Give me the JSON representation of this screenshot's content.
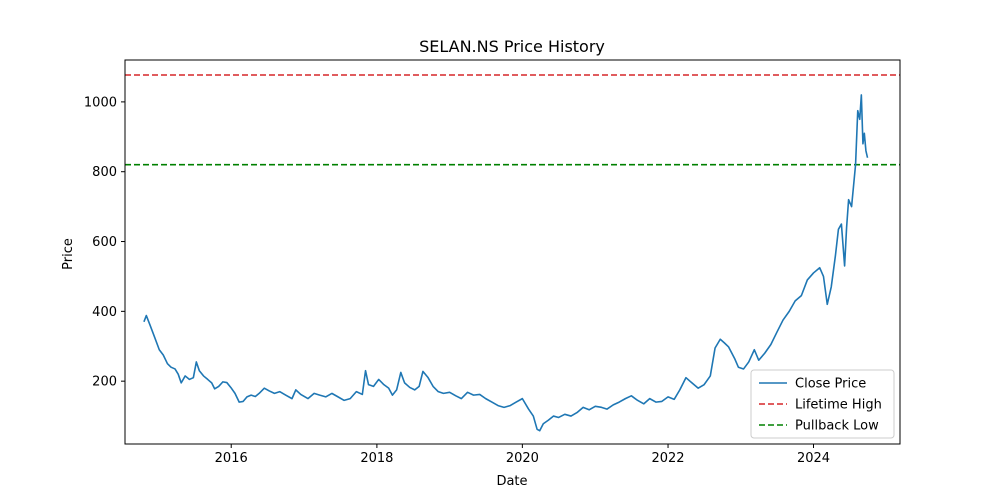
{
  "chart_data": {
    "type": "line",
    "title": "SELAN.NS Price History",
    "xlabel": "Date",
    "ylabel": "Price",
    "xlim": [
      "2014-07-17",
      "2025-03-10"
    ],
    "ylim": [
      20,
      1120
    ],
    "x_ticks": [
      {
        "date": "2016-01-01",
        "label": "2016"
      },
      {
        "date": "2018-01-01",
        "label": "2018"
      },
      {
        "date": "2020-01-01",
        "label": "2020"
      },
      {
        "date": "2022-01-01",
        "label": "2022"
      },
      {
        "date": "2024-01-01",
        "label": "2024"
      }
    ],
    "y_ticks": [
      200,
      400,
      600,
      800,
      1000
    ],
    "grid": false,
    "legend_position": "lower-right",
    "series": [
      {
        "name": "Close Price",
        "color": "#1f77b4",
        "style": "solid",
        "points": [
          [
            "2014-10-20",
            370
          ],
          [
            "2014-11-01",
            388
          ],
          [
            "2014-11-20",
            360
          ],
          [
            "2014-12-10",
            330
          ],
          [
            "2015-01-05",
            290
          ],
          [
            "2015-01-25",
            275
          ],
          [
            "2015-02-15",
            250
          ],
          [
            "2015-03-05",
            240
          ],
          [
            "2015-03-25",
            235
          ],
          [
            "2015-04-10",
            220
          ],
          [
            "2015-04-25",
            195
          ],
          [
            "2015-05-15",
            215
          ],
          [
            "2015-06-05",
            205
          ],
          [
            "2015-06-25",
            210
          ],
          [
            "2015-07-10",
            255
          ],
          [
            "2015-07-25",
            230
          ],
          [
            "2015-08-15",
            215
          ],
          [
            "2015-09-05",
            205
          ],
          [
            "2015-09-25",
            195
          ],
          [
            "2015-10-10",
            178
          ],
          [
            "2015-10-30",
            185
          ],
          [
            "2015-11-20",
            198
          ],
          [
            "2015-12-10",
            196
          ],
          [
            "2015-12-30",
            182
          ],
          [
            "2016-01-20",
            165
          ],
          [
            "2016-02-10",
            140
          ],
          [
            "2016-03-01",
            142
          ],
          [
            "2016-03-20",
            155
          ],
          [
            "2016-04-10",
            160
          ],
          [
            "2016-05-01",
            156
          ],
          [
            "2016-05-20",
            165
          ],
          [
            "2016-06-15",
            180
          ],
          [
            "2016-07-10",
            172
          ],
          [
            "2016-08-05",
            165
          ],
          [
            "2016-09-01",
            170
          ],
          [
            "2016-10-01",
            160
          ],
          [
            "2016-11-01",
            150
          ],
          [
            "2016-11-20",
            175
          ],
          [
            "2016-12-15",
            162
          ],
          [
            "2017-01-20",
            150
          ],
          [
            "2017-02-20",
            165
          ],
          [
            "2017-03-20",
            160
          ],
          [
            "2017-04-20",
            155
          ],
          [
            "2017-05-20",
            165
          ],
          [
            "2017-06-20",
            155
          ],
          [
            "2017-07-20",
            145
          ],
          [
            "2017-08-20",
            150
          ],
          [
            "2017-09-20",
            170
          ],
          [
            "2017-10-20",
            162
          ],
          [
            "2017-11-05",
            230
          ],
          [
            "2017-11-20",
            190
          ],
          [
            "2017-12-15",
            185
          ],
          [
            "2018-01-10",
            205
          ],
          [
            "2018-02-05",
            190
          ],
          [
            "2018-03-01",
            180
          ],
          [
            "2018-03-20",
            160
          ],
          [
            "2018-04-10",
            175
          ],
          [
            "2018-05-01",
            225
          ],
          [
            "2018-05-20",
            195
          ],
          [
            "2018-06-15",
            182
          ],
          [
            "2018-07-10",
            175
          ],
          [
            "2018-08-01",
            185
          ],
          [
            "2018-08-20",
            228
          ],
          [
            "2018-09-15",
            210
          ],
          [
            "2018-10-10",
            185
          ],
          [
            "2018-11-05",
            170
          ],
          [
            "2018-12-01",
            165
          ],
          [
            "2019-01-01",
            168
          ],
          [
            "2019-02-01",
            158
          ],
          [
            "2019-03-01",
            150
          ],
          [
            "2019-04-01",
            168
          ],
          [
            "2019-05-01",
            160
          ],
          [
            "2019-06-01",
            162
          ],
          [
            "2019-07-01",
            150
          ],
          [
            "2019-08-01",
            140
          ],
          [
            "2019-09-01",
            130
          ],
          [
            "2019-10-01",
            125
          ],
          [
            "2019-11-01",
            130
          ],
          [
            "2019-12-01",
            140
          ],
          [
            "2020-01-01",
            150
          ],
          [
            "2020-02-01",
            120
          ],
          [
            "2020-02-25",
            100
          ],
          [
            "2020-03-15",
            62
          ],
          [
            "2020-03-28",
            58
          ],
          [
            "2020-04-15",
            78
          ],
          [
            "2020-05-10",
            88
          ],
          [
            "2020-06-05",
            100
          ],
          [
            "2020-07-01",
            96
          ],
          [
            "2020-08-01",
            105
          ],
          [
            "2020-09-01",
            100
          ],
          [
            "2020-10-01",
            110
          ],
          [
            "2020-11-01",
            125
          ],
          [
            "2020-12-01",
            118
          ],
          [
            "2021-01-01",
            128
          ],
          [
            "2021-02-01",
            125
          ],
          [
            "2021-03-01",
            120
          ],
          [
            "2021-04-01",
            132
          ],
          [
            "2021-05-01",
            140
          ],
          [
            "2021-06-01",
            150
          ],
          [
            "2021-07-01",
            158
          ],
          [
            "2021-08-01",
            145
          ],
          [
            "2021-09-01",
            135
          ],
          [
            "2021-10-01",
            150
          ],
          [
            "2021-11-01",
            140
          ],
          [
            "2021-12-01",
            142
          ],
          [
            "2022-01-01",
            155
          ],
          [
            "2022-02-01",
            148
          ],
          [
            "2022-03-01",
            175
          ],
          [
            "2022-04-01",
            210
          ],
          [
            "2022-05-01",
            195
          ],
          [
            "2022-06-01",
            180
          ],
          [
            "2022-07-01",
            190
          ],
          [
            "2022-08-01",
            215
          ],
          [
            "2022-08-25",
            295
          ],
          [
            "2022-09-20",
            320
          ],
          [
            "2022-10-10",
            310
          ],
          [
            "2022-11-01",
            298
          ],
          [
            "2022-12-01",
            265
          ],
          [
            "2022-12-20",
            240
          ],
          [
            "2023-01-15",
            235
          ],
          [
            "2023-02-10",
            255
          ],
          [
            "2023-03-10",
            290
          ],
          [
            "2023-04-01",
            260
          ],
          [
            "2023-05-01",
            280
          ],
          [
            "2023-06-01",
            305
          ],
          [
            "2023-07-01",
            340
          ],
          [
            "2023-08-01",
            375
          ],
          [
            "2023-09-01",
            400
          ],
          [
            "2023-10-01",
            430
          ],
          [
            "2023-11-01",
            445
          ],
          [
            "2023-12-01",
            490
          ],
          [
            "2024-01-01",
            510
          ],
          [
            "2024-02-01",
            525
          ],
          [
            "2024-02-20",
            500
          ],
          [
            "2024-03-10",
            420
          ],
          [
            "2024-03-30",
            470
          ],
          [
            "2024-04-20",
            560
          ],
          [
            "2024-05-05",
            635
          ],
          [
            "2024-05-20",
            650
          ],
          [
            "2024-06-05",
            530
          ],
          [
            "2024-06-15",
            640
          ],
          [
            "2024-06-25",
            720
          ],
          [
            "2024-07-10",
            700
          ],
          [
            "2024-07-20",
            760
          ],
          [
            "2024-07-30",
            820
          ],
          [
            "2024-08-10",
            975
          ],
          [
            "2024-08-20",
            950
          ],
          [
            "2024-08-28",
            1020
          ],
          [
            "2024-09-05",
            880
          ],
          [
            "2024-09-12",
            910
          ],
          [
            "2024-09-20",
            860
          ],
          [
            "2024-09-28",
            840
          ]
        ]
      },
      {
        "name": "Lifetime High",
        "color": "#d62728",
        "style": "dashed",
        "y": 1077
      },
      {
        "name": "Pullback Low",
        "color": "#008000",
        "style": "dashed",
        "y": 820
      }
    ]
  }
}
